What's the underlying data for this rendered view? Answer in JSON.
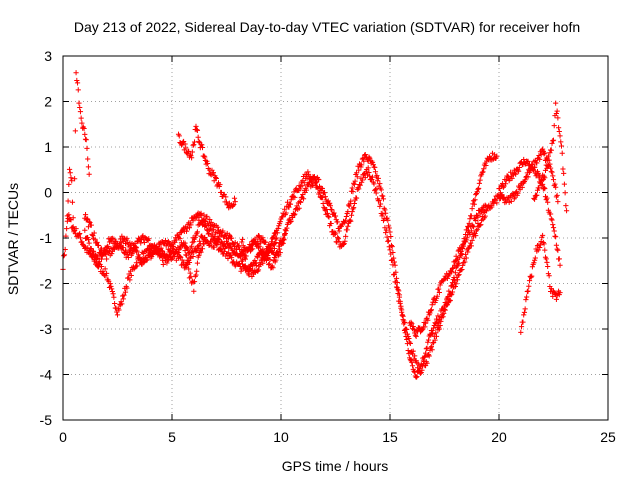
{
  "chart_data": {
    "type": "scatter",
    "title": "Day 213 of 2022, Sidereal Day-to-day VTEC variation (SDTVAR) for receiver hofn",
    "xlabel": "GPS time / hours",
    "ylabel": "SDTVAR / TECUs",
    "xlim": [
      0,
      25
    ],
    "ylim": [
      -5,
      3
    ],
    "xticks": [
      0,
      5,
      10,
      15,
      20,
      25
    ],
    "yticks": [
      -5,
      -4,
      -3,
      -2,
      -1,
      0,
      1,
      2,
      3
    ],
    "grid": true,
    "marker": "+",
    "colors": {
      "series": "#ff0000",
      "grid": "#a0a0a0",
      "axis": "#000000"
    },
    "series": [
      {
        "name": "SDTVAR",
        "segments": [
          [
            [
              0.0,
              -1.6
            ],
            [
              0.1,
              -1.2
            ],
            [
              0.2,
              -0.6
            ],
            [
              0.3,
              0.5
            ],
            [
              0.4,
              0.2
            ],
            [
              0.5,
              -0.9
            ],
            [
              0.6,
              2.6
            ],
            [
              0.7,
              2.2
            ],
            [
              0.8,
              1.7
            ],
            [
              0.9,
              1.4
            ],
            [
              1.0,
              1.3
            ],
            [
              1.1,
              1.0
            ],
            [
              1.2,
              0.4
            ]
          ],
          [
            [
              0.2,
              -0.5
            ],
            [
              0.5,
              -0.8
            ],
            [
              0.8,
              -1.0
            ],
            [
              1.0,
              -1.2
            ],
            [
              1.3,
              -1.4
            ],
            [
              1.6,
              -1.6
            ],
            [
              2.0,
              -1.8
            ],
            [
              2.3,
              -2.3
            ],
            [
              2.5,
              -2.6
            ],
            [
              2.7,
              -2.4
            ],
            [
              3.0,
              -1.9
            ],
            [
              3.3,
              -1.6
            ],
            [
              3.6,
              -1.4
            ],
            [
              4.0,
              -1.3
            ],
            [
              4.4,
              -1.3
            ],
            [
              4.8,
              -1.5
            ],
            [
              5.2,
              -1.3
            ],
            [
              5.5,
              -1.1
            ],
            [
              5.8,
              -1.4
            ],
            [
              6.0,
              -1.0
            ],
            [
              6.3,
              -0.6
            ],
            [
              6.6,
              -0.8
            ],
            [
              7.0,
              -1.0
            ],
            [
              7.4,
              -1.1
            ],
            [
              7.8,
              -1.3
            ],
            [
              8.2,
              -1.5
            ],
            [
              8.5,
              -1.3
            ],
            [
              8.8,
              -1.1
            ],
            [
              9.2,
              -1.4
            ],
            [
              9.6,
              -1.6
            ],
            [
              10.0,
              -1.2
            ],
            [
              10.4,
              -0.6
            ],
            [
              10.8,
              -0.3
            ],
            [
              11.2,
              0.1
            ],
            [
              11.6,
              0.3
            ],
            [
              12.0,
              0.0
            ],
            [
              12.4,
              -0.5
            ],
            [
              12.7,
              -0.8
            ],
            [
              13.0,
              -0.5
            ],
            [
              13.3,
              0.1
            ],
            [
              13.6,
              0.6
            ],
            [
              13.9,
              0.8
            ],
            [
              14.2,
              0.6
            ],
            [
              14.5,
              0.2
            ],
            [
              14.8,
              -0.4
            ],
            [
              15.1,
              -1.2
            ],
            [
              15.4,
              -2.2
            ],
            [
              15.7,
              -3.1
            ],
            [
              16.0,
              -3.8
            ],
            [
              16.2,
              -4.0
            ],
            [
              16.5,
              -3.7
            ],
            [
              16.8,
              -3.2
            ],
            [
              17.2,
              -2.8
            ],
            [
              17.6,
              -2.4
            ],
            [
              18.0,
              -1.8
            ],
            [
              18.4,
              -1.1
            ],
            [
              18.8,
              -0.3
            ],
            [
              19.2,
              0.4
            ],
            [
              19.6,
              0.8
            ],
            [
              19.9,
              0.8
            ]
          ],
          [
            [
              1.0,
              -0.5
            ],
            [
              1.3,
              -0.8
            ],
            [
              1.6,
              -1.2
            ],
            [
              2.0,
              -1.4
            ],
            [
              2.4,
              -1.2
            ],
            [
              2.8,
              -1.0
            ],
            [
              3.2,
              -1.2
            ],
            [
              3.6,
              -1.5
            ],
            [
              4.0,
              -1.4
            ],
            [
              4.4,
              -1.2
            ],
            [
              4.8,
              -1.1
            ],
            [
              5.2,
              -1.4
            ],
            [
              5.6,
              -1.6
            ],
            [
              6.0,
              -1.3
            ],
            [
              6.4,
              -1.0
            ],
            [
              6.8,
              -1.1
            ],
            [
              7.2,
              -1.2
            ],
            [
              7.6,
              -1.4
            ],
            [
              8.0,
              -1.6
            ],
            [
              8.4,
              -1.7
            ],
            [
              8.8,
              -1.5
            ],
            [
              9.2,
              -1.3
            ],
            [
              9.6,
              -1.1
            ],
            [
              10.0,
              -0.6
            ],
            [
              10.4,
              -0.2
            ],
            [
              10.8,
              0.1
            ],
            [
              11.2,
              0.4
            ],
            [
              11.6,
              0.2
            ],
            [
              12.0,
              -0.3
            ],
            [
              12.4,
              -0.9
            ],
            [
              12.8,
              -1.2
            ],
            [
              13.2,
              -0.6
            ],
            [
              13.6,
              0.2
            ],
            [
              14.0,
              0.5
            ],
            [
              14.4,
              0.0
            ],
            [
              14.8,
              -0.8
            ],
            [
              15.2,
              -1.8
            ],
            [
              15.6,
              -2.8
            ],
            [
              16.0,
              -3.5
            ],
            [
              16.4,
              -3.9
            ],
            [
              16.8,
              -3.6
            ],
            [
              17.2,
              -3.0
            ],
            [
              17.6,
              -2.5
            ],
            [
              18.0,
              -2.0
            ],
            [
              18.4,
              -1.5
            ],
            [
              18.8,
              -1.0
            ],
            [
              19.2,
              -0.6
            ],
            [
              19.6,
              -0.3
            ],
            [
              20.0,
              -0.1
            ],
            [
              20.4,
              -0.2
            ],
            [
              20.8,
              0.0
            ],
            [
              21.2,
              0.3
            ],
            [
              21.6,
              0.6
            ],
            [
              22.0,
              0.9
            ],
            [
              22.4,
              0.5
            ],
            [
              22.7,
              -0.2
            ]
          ],
          [
            [
              5.3,
              1.2
            ],
            [
              5.6,
              1.0
            ],
            [
              5.9,
              0.8
            ],
            [
              6.1,
              1.4
            ],
            [
              6.4,
              0.9
            ],
            [
              6.7,
              0.5
            ],
            [
              7.0,
              0.3
            ],
            [
              7.3,
              0.0
            ],
            [
              7.6,
              -0.3
            ],
            [
              7.9,
              -0.2
            ]
          ],
          [
            [
              5.6,
              -1.2
            ],
            [
              5.8,
              -1.8
            ],
            [
              6.0,
              -2.1
            ],
            [
              6.2,
              -1.5
            ],
            [
              6.5,
              -1.0
            ]
          ],
          [
            [
              8.2,
              -1.0
            ],
            [
              8.4,
              -1.7
            ],
            [
              8.7,
              -1.8
            ],
            [
              9.0,
              -1.6
            ],
            [
              9.4,
              -1.3
            ],
            [
              9.8,
              -1.0
            ]
          ],
          [
            [
              15.9,
              -2.8
            ],
            [
              16.2,
              -3.1
            ],
            [
              16.6,
              -2.9
            ],
            [
              17.0,
              -2.4
            ],
            [
              17.4,
              -2.0
            ],
            [
              17.8,
              -1.7
            ],
            [
              18.2,
              -1.3
            ],
            [
              18.6,
              -0.9
            ],
            [
              19.0,
              -0.5
            ],
            [
              19.4,
              -0.3
            ]
          ],
          [
            [
              20.0,
              0.0
            ],
            [
              20.4,
              0.3
            ],
            [
              20.8,
              0.5
            ],
            [
              21.2,
              0.7
            ],
            [
              21.6,
              0.5
            ],
            [
              22.0,
              0.2
            ],
            [
              22.3,
              -0.4
            ],
            [
              22.6,
              -1.0
            ],
            [
              22.8,
              -1.6
            ]
          ],
          [
            [
              21.0,
              -3.1
            ],
            [
              21.2,
              -2.5
            ],
            [
              21.4,
              -2.0
            ],
            [
              21.7,
              -1.3
            ],
            [
              22.0,
              -1.0
            ],
            [
              22.2,
              -1.6
            ],
            [
              22.4,
              -2.2
            ],
            [
              22.6,
              -2.3
            ],
            [
              22.8,
              -2.2
            ]
          ],
          [
            [
              21.6,
              -0.2
            ],
            [
              21.9,
              0.2
            ],
            [
              22.1,
              0.4
            ],
            [
              22.3,
              0.8
            ],
            [
              22.5,
              1.2
            ],
            [
              22.6,
              1.9
            ],
            [
              22.7,
              1.6
            ],
            [
              22.9,
              0.8
            ],
            [
              23.0,
              0.2
            ],
            [
              23.1,
              -0.4
            ]
          ],
          [
            [
              1.0,
              -0.9
            ],
            [
              1.3,
              -1.3
            ],
            [
              1.6,
              -1.5
            ],
            [
              1.9,
              -1.3
            ],
            [
              2.2,
              -1.0
            ],
            [
              2.6,
              -1.2
            ],
            [
              3.0,
              -1.4
            ],
            [
              3.4,
              -1.1
            ],
            [
              3.8,
              -1.0
            ],
            [
              4.2,
              -1.2
            ],
            [
              4.6,
              -1.5
            ],
            [
              5.0,
              -1.2
            ],
            [
              5.4,
              -0.9
            ],
            [
              5.8,
              -0.7
            ],
            [
              6.2,
              -0.5
            ],
            [
              6.6,
              -0.6
            ],
            [
              7.0,
              -0.8
            ],
            [
              7.4,
              -0.9
            ],
            [
              7.8,
              -1.1
            ],
            [
              8.2,
              -1.3
            ],
            [
              8.6,
              -1.2
            ],
            [
              9.0,
              -1.0
            ],
            [
              9.4,
              -1.2
            ],
            [
              9.8,
              -1.3
            ],
            [
              10.2,
              -0.9
            ]
          ]
        ]
      }
    ]
  }
}
